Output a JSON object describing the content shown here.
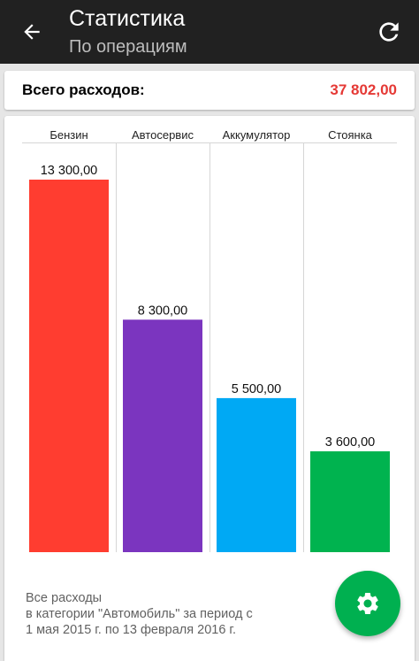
{
  "header": {
    "title": "Статистика",
    "subtitle": "По операциям",
    "back_icon": "arrow-back-icon",
    "refresh_icon": "refresh-icon"
  },
  "summary": {
    "label": "Всего расходов:",
    "value": "37 802,00",
    "value_color": "#e53935"
  },
  "chart_data": {
    "type": "bar",
    "categories": [
      "Бензин",
      "Автосервис",
      "Аккумулятор",
      "Стоянка"
    ],
    "values": [
      13300,
      8300,
      5500,
      3600
    ],
    "value_labels": [
      "13 300,00",
      "8 300,00",
      "5 500,00",
      "3 600,00"
    ],
    "colors": [
      "#ff3d30",
      "#7b35bf",
      "#00a9f4",
      "#00b34f"
    ],
    "title": "",
    "xlabel": "",
    "ylabel": "",
    "ylim": [
      0,
      13300
    ],
    "grid": false,
    "legend": "none"
  },
  "footnote": {
    "line1": "Все расходы",
    "line2": "в категории \"Автомобиль\" за период с",
    "line3": "1 мая 2015 г. по 13 февраля 2016 г."
  },
  "fab": {
    "icon": "gear-icon",
    "color": "#00b050"
  }
}
